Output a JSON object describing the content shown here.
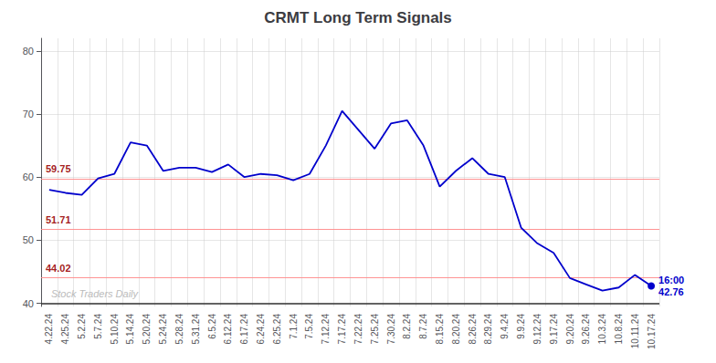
{
  "chart_data": {
    "type": "line",
    "title": "CRMT Long Term Signals",
    "categories": [
      "4.22.24",
      "4.25.24",
      "5.2.24",
      "5.7.24",
      "5.10.24",
      "5.14.24",
      "5.20.24",
      "5.24.24",
      "5.28.24",
      "5.31.24",
      "6.5.24",
      "6.12.24",
      "6.17.24",
      "6.24.24",
      "6.25.24",
      "7.1.24",
      "7.5.24",
      "7.12.24",
      "7.17.24",
      "7.22.24",
      "7.25.24",
      "7.30.24",
      "8.2.24",
      "8.7.24",
      "8.15.24",
      "8.20.24",
      "8.26.24",
      "8.29.24",
      "9.4.24",
      "9.9.24",
      "9.12.24",
      "9.17.24",
      "9.20.24",
      "9.26.24",
      "10.3.24",
      "10.8.24",
      "10.11.24",
      "10.17.24"
    ],
    "values": [
      58.0,
      57.5,
      57.2,
      59.8,
      60.5,
      65.5,
      65.0,
      61.0,
      61.5,
      61.5,
      60.8,
      62.0,
      60.0,
      60.5,
      60.3,
      59.5,
      60.5,
      65.0,
      70.5,
      67.5,
      64.5,
      68.5,
      69.0,
      65.0,
      58.5,
      61.0,
      63.0,
      60.5,
      60.0,
      52.0,
      49.5,
      48.0,
      44.0,
      43.0,
      42.0,
      42.5,
      44.5,
      42.76
    ],
    "color": "#0000CC",
    "ylim": [
      39.5,
      82
    ],
    "yticks": [
      40,
      50,
      60,
      70,
      80
    ],
    "grid": true,
    "hlines": {
      "values": [
        59.75,
        51.71,
        44.02
      ],
      "color": "#FF8888"
    },
    "baseline": {
      "value": 40.0,
      "color": "#333333"
    },
    "annotation": "16:00\n42.76",
    "watermark": "Stock Traders Daily"
  }
}
